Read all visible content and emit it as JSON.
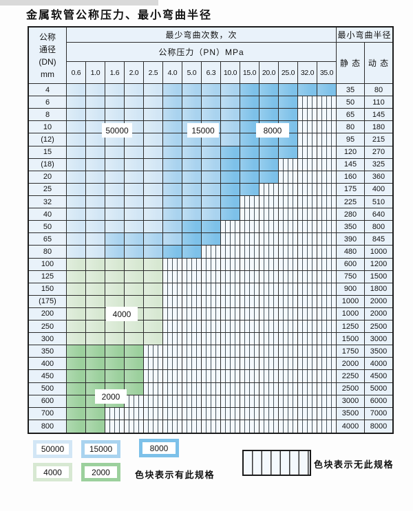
{
  "page_title": "金属软管公称压力、最小弯曲半径",
  "chart_data": {
    "type": "table",
    "title": "金属软管公称压力、最小弯曲半径",
    "header": {
      "dn_label_lines": [
        "公称",
        "通径",
        "(DN)",
        "mm"
      ],
      "cycles_label": "最少弯曲次数，次",
      "pressure_label": "公称压力（PN）MPa",
      "radius_label": "最小弯曲半径",
      "static_label": "静 态",
      "dynamic_label": "动 态",
      "pressure_ticks": [
        "0.6",
        "1.0",
        "1.6",
        "2.0",
        "2.5",
        "4.0",
        "5.0",
        "6.3",
        "10.0",
        "15.0",
        "20.0",
        "25.0",
        "32.0",
        "35.0"
      ]
    },
    "cycle_zone_values": {
      "b1": "50000",
      "b2": "15000",
      "b3": "8000",
      "g1": "4000",
      "g2": "2000"
    },
    "rows": [
      {
        "dn": "4",
        "band": "blue",
        "spec_cols": 14,
        "mid_from": 6,
        "dark_from": 10,
        "static": "35",
        "dynamic": "80"
      },
      {
        "dn": "6",
        "band": "blue",
        "spec_cols": 12,
        "mid_from": 6,
        "dark_from": 10,
        "static": "50",
        "dynamic": "110"
      },
      {
        "dn": "8",
        "band": "blue",
        "spec_cols": 12,
        "mid_from": 6,
        "dark_from": 10,
        "static": "65",
        "dynamic": "145"
      },
      {
        "dn": "10",
        "band": "blue",
        "spec_cols": 12,
        "mid_from": 6,
        "dark_from": 10,
        "static": "80",
        "dynamic": "180"
      },
      {
        "dn": "(12)",
        "band": "blue",
        "spec_cols": 12,
        "mid_from": 6,
        "dark_from": 10,
        "static": "95",
        "dynamic": "215"
      },
      {
        "dn": "15",
        "band": "blue",
        "spec_cols": 12,
        "mid_from": 6,
        "dark_from": 9,
        "static": "120",
        "dynamic": "270"
      },
      {
        "dn": "(18)",
        "band": "blue",
        "spec_cols": 11,
        "mid_from": 6,
        "dark_from": 9,
        "static": "145",
        "dynamic": "325"
      },
      {
        "dn": "20",
        "band": "blue",
        "spec_cols": 11,
        "mid_from": 6,
        "dark_from": 9,
        "static": "160",
        "dynamic": "360"
      },
      {
        "dn": "25",
        "band": "blue",
        "spec_cols": 10,
        "mid_from": 6,
        "dark_from": 9,
        "static": "175",
        "dynamic": "400"
      },
      {
        "dn": "32",
        "band": "blue",
        "spec_cols": 9,
        "mid_from": 6,
        "dark_from": 9,
        "static": "225",
        "dynamic": "510"
      },
      {
        "dn": "40",
        "band": "blue",
        "spec_cols": 9,
        "mid_from": 6,
        "dark_from": 9,
        "static": "280",
        "dynamic": "640"
      },
      {
        "dn": "50",
        "band": "blue",
        "spec_cols": 8,
        "mid_from": 6,
        "dark_from": 7,
        "static": "350",
        "dynamic": "800"
      },
      {
        "dn": "65",
        "band": "blue",
        "spec_cols": 8,
        "mid_from": 3,
        "dark_from": 7,
        "static": "390",
        "dynamic": "845"
      },
      {
        "dn": "80",
        "band": "blue",
        "spec_cols": 7,
        "mid_from": 3,
        "dark_from": 6,
        "static": "480",
        "dynamic": "1000"
      },
      {
        "dn": "100",
        "band": "green4",
        "spec_cols": 5,
        "static": "600",
        "dynamic": "1200"
      },
      {
        "dn": "125",
        "band": "green4",
        "spec_cols": 5,
        "static": "750",
        "dynamic": "1500"
      },
      {
        "dn": "150",
        "band": "green4",
        "spec_cols": 5,
        "static": "900",
        "dynamic": "1800"
      },
      {
        "dn": "(175)",
        "band": "green4",
        "spec_cols": 5,
        "static": "1000",
        "dynamic": "2000"
      },
      {
        "dn": "200",
        "band": "green4",
        "spec_cols": 5,
        "static": "1000",
        "dynamic": "2000"
      },
      {
        "dn": "250",
        "band": "green4",
        "spec_cols": 5,
        "static": "1250",
        "dynamic": "2500"
      },
      {
        "dn": "300",
        "band": "green4",
        "spec_cols": 5,
        "static": "1500",
        "dynamic": "3000"
      },
      {
        "dn": "350",
        "band": "green2",
        "spec_cols": 4,
        "static": "1750",
        "dynamic": "3500"
      },
      {
        "dn": "400",
        "band": "green2",
        "spec_cols": 4,
        "static": "2000",
        "dynamic": "4000"
      },
      {
        "dn": "450",
        "band": "green2",
        "spec_cols": 4,
        "static": "2250",
        "dynamic": "4500"
      },
      {
        "dn": "500",
        "band": "green2",
        "spec_cols": 4,
        "static": "2500",
        "dynamic": "5000"
      },
      {
        "dn": "600",
        "band": "green2",
        "spec_cols": 3,
        "static": "3000",
        "dynamic": "6000"
      },
      {
        "dn": "700",
        "band": "green2",
        "spec_cols": 2,
        "static": "3500",
        "dynamic": "7000"
      },
      {
        "dn": "800",
        "band": "green2",
        "spec_cols": 2,
        "static": "4000",
        "dynamic": "8000"
      }
    ],
    "overlay_labels": [
      {
        "text": "50000"
      },
      {
        "text": "15000"
      },
      {
        "text": "8000"
      },
      {
        "text": "4000"
      },
      {
        "text": "2000"
      }
    ]
  },
  "legend": {
    "items": [
      {
        "value": "50000",
        "zone": "b1"
      },
      {
        "value": "15000",
        "zone": "b2"
      },
      {
        "value": "8000",
        "zone": "b3"
      },
      {
        "value": "4000",
        "zone": "g1"
      },
      {
        "value": "2000",
        "zone": "g2"
      }
    ],
    "has_spec_note": "色块表示有此规格",
    "no_spec_note": "色块表示无此规格"
  },
  "colors": {
    "light_blue": "#d2e6f5",
    "mid_blue": "#a9d3ef",
    "dark_blue": "#7dc1e9",
    "light_green": "#d7e8d2",
    "dark_green": "#9cd09d",
    "cell_bg": "#e9f2fa",
    "hatch_bg": "#f4f9fd",
    "hatch_line": "#47545c",
    "grid_line": "#2b2b2b"
  }
}
